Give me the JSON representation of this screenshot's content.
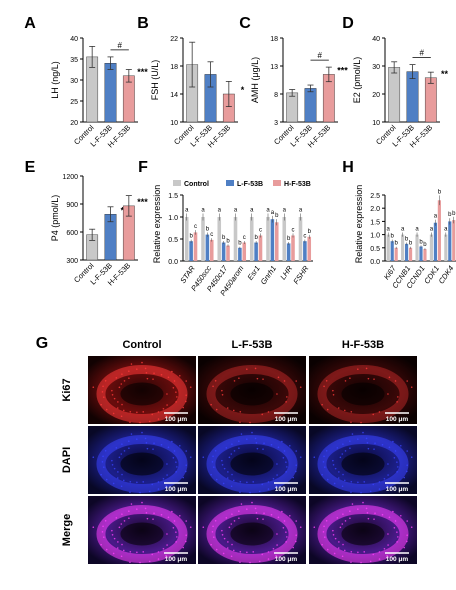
{
  "panel_letters": [
    "A",
    "B",
    "C",
    "D",
    "E",
    "F",
    "H",
    "G"
  ],
  "chart_data": [
    {
      "panel": "A",
      "type": "bar",
      "ylabel": "LH (ng/L)",
      "ylim": [
        20,
        40
      ],
      "yticks": [
        "20",
        "25",
        "30",
        "35",
        "40"
      ],
      "categories": [
        "Control",
        "L-F-53B",
        "H-F-53B"
      ],
      "values": [
        35.5,
        34.0,
        31.0
      ],
      "errors": [
        2.5,
        1.5,
        1.5
      ],
      "marks": [
        "",
        "",
        "***"
      ],
      "bracket": {
        "from": 1,
        "to": 2,
        "label": "#"
      },
      "colors": [
        "#c8c8c8",
        "#4f7fc4",
        "#e89c9c"
      ]
    },
    {
      "panel": "B",
      "type": "bar",
      "ylabel": "FSH (U/L)",
      "ylim": [
        10,
        22
      ],
      "yticks": [
        "10",
        "14",
        "18",
        "22"
      ],
      "categories": [
        "Control",
        "L-F-53B",
        "H-F-53B"
      ],
      "values": [
        18.2,
        16.8,
        14.0
      ],
      "errors": [
        3.2,
        1.8,
        1.8
      ],
      "marks": [
        "",
        "",
        "*"
      ],
      "bracket": null,
      "colors": [
        "#c8c8c8",
        "#4f7fc4",
        "#e89c9c"
      ]
    },
    {
      "panel": "C",
      "type": "bar",
      "ylabel": "AMH (μg/L)",
      "ylim": [
        3,
        18
      ],
      "yticks": [
        "3",
        "8",
        "13",
        "18"
      ],
      "categories": [
        "Control",
        "L-F-53B",
        "H-F-53B"
      ],
      "values": [
        8.2,
        9.0,
        11.5
      ],
      "errors": [
        0.6,
        0.6,
        1.3
      ],
      "marks": [
        "",
        "",
        "***"
      ],
      "bracket": {
        "from": 1,
        "to": 2,
        "label": "#"
      },
      "colors": [
        "#c8c8c8",
        "#4f7fc4",
        "#e89c9c"
      ]
    },
    {
      "panel": "D",
      "type": "bar",
      "ylabel": "E2 (pmol/L)",
      "ylim": [
        10,
        40
      ],
      "yticks": [
        "10",
        "20",
        "30",
        "40"
      ],
      "categories": [
        "Control",
        "L-F-53B",
        "H-F-53B"
      ],
      "values": [
        29.5,
        28.0,
        25.8
      ],
      "errors": [
        2.0,
        2.5,
        2.0
      ],
      "marks": [
        "",
        "",
        "**"
      ],
      "bracket": {
        "from": 1,
        "to": 2,
        "label": "#"
      },
      "colors": [
        "#c8c8c8",
        "#4f7fc4",
        "#e89c9c"
      ]
    },
    {
      "panel": "E",
      "type": "bar",
      "ylabel": "P4 (pmol/L)",
      "ylim": [
        300,
        1200
      ],
      "yticks": [
        "300",
        "600",
        "900",
        "1200"
      ],
      "categories": [
        "Control",
        "L-F-53B",
        "H-F-53B"
      ],
      "values": [
        570,
        790,
        880
      ],
      "errors": [
        60,
        80,
        110
      ],
      "marks": [
        "",
        "**",
        "***"
      ],
      "bracket": null,
      "colors": [
        "#c8c8c8",
        "#4f7fc4",
        "#e89c9c"
      ]
    },
    {
      "panel": "F",
      "type": "bar",
      "ylabel": "Relative expression",
      "ylim": [
        0,
        1.5
      ],
      "yticks": [
        "0.0",
        "0.5",
        "1.0",
        "1.5"
      ],
      "categories": [
        "STAR",
        "P450scc",
        "P450c17",
        "P450arom",
        "Esr1",
        "Gnrh1",
        "LHR",
        "FSHR"
      ],
      "series": [
        {
          "name": "Control",
          "values": [
            1.0,
            1.0,
            1.0,
            1.0,
            1.0,
            1.0,
            1.0,
            1.0
          ],
          "labels": [
            "a",
            "a",
            "a",
            "a",
            "a",
            "a",
            "a",
            "a"
          ]
        },
        {
          "name": "L-F-53B",
          "values": [
            0.45,
            0.6,
            0.42,
            0.3,
            0.42,
            0.95,
            0.4,
            0.45
          ],
          "labels": [
            "b",
            "b",
            "b",
            "b",
            "b",
            "a",
            "b",
            "c"
          ]
        },
        {
          "name": "H-F-53B",
          "values": [
            0.65,
            0.48,
            0.35,
            0.42,
            0.58,
            0.88,
            0.58,
            0.55
          ],
          "labels": [
            "c",
            "c",
            "b",
            "c",
            "c",
            "b",
            "c",
            "b"
          ]
        }
      ],
      "colors": [
        "#c8c8c8",
        "#4f7fc4",
        "#e89c9c"
      ]
    },
    {
      "panel": "H",
      "type": "bar",
      "ylabel": "Relative expression",
      "ylim": [
        0,
        2.5
      ],
      "yticks": [
        "0.0",
        "0.5",
        "1.0",
        "1.5",
        "2.0",
        "2.5"
      ],
      "categories": [
        "Ki67",
        "CCNB1",
        "CCND1",
        "CDK1",
        "CDK4"
      ],
      "series": [
        {
          "name": "Control",
          "values": [
            1.0,
            1.0,
            1.0,
            1.0,
            1.0
          ],
          "labels": [
            "a",
            "a",
            "a",
            "a",
            "a"
          ]
        },
        {
          "name": "L-F-53B",
          "values": [
            0.75,
            0.65,
            0.55,
            1.45,
            1.5
          ],
          "labels": [
            "b",
            "b",
            "b",
            "a",
            "b"
          ]
        },
        {
          "name": "H-F-53B",
          "values": [
            0.5,
            0.5,
            0.45,
            2.3,
            1.55
          ],
          "labels": [
            "b",
            "b",
            "b",
            "b",
            "b"
          ]
        }
      ],
      "colors": [
        "#c8c8c8",
        "#4f7fc4",
        "#e89c9c"
      ]
    }
  ],
  "microscopy": {
    "letter": "G",
    "columns": [
      "Control",
      "L-F-53B",
      "H-F-53B"
    ],
    "rows": [
      "Ki67",
      "DAPI",
      "Merge"
    ],
    "scale_bar": "100 μm"
  }
}
